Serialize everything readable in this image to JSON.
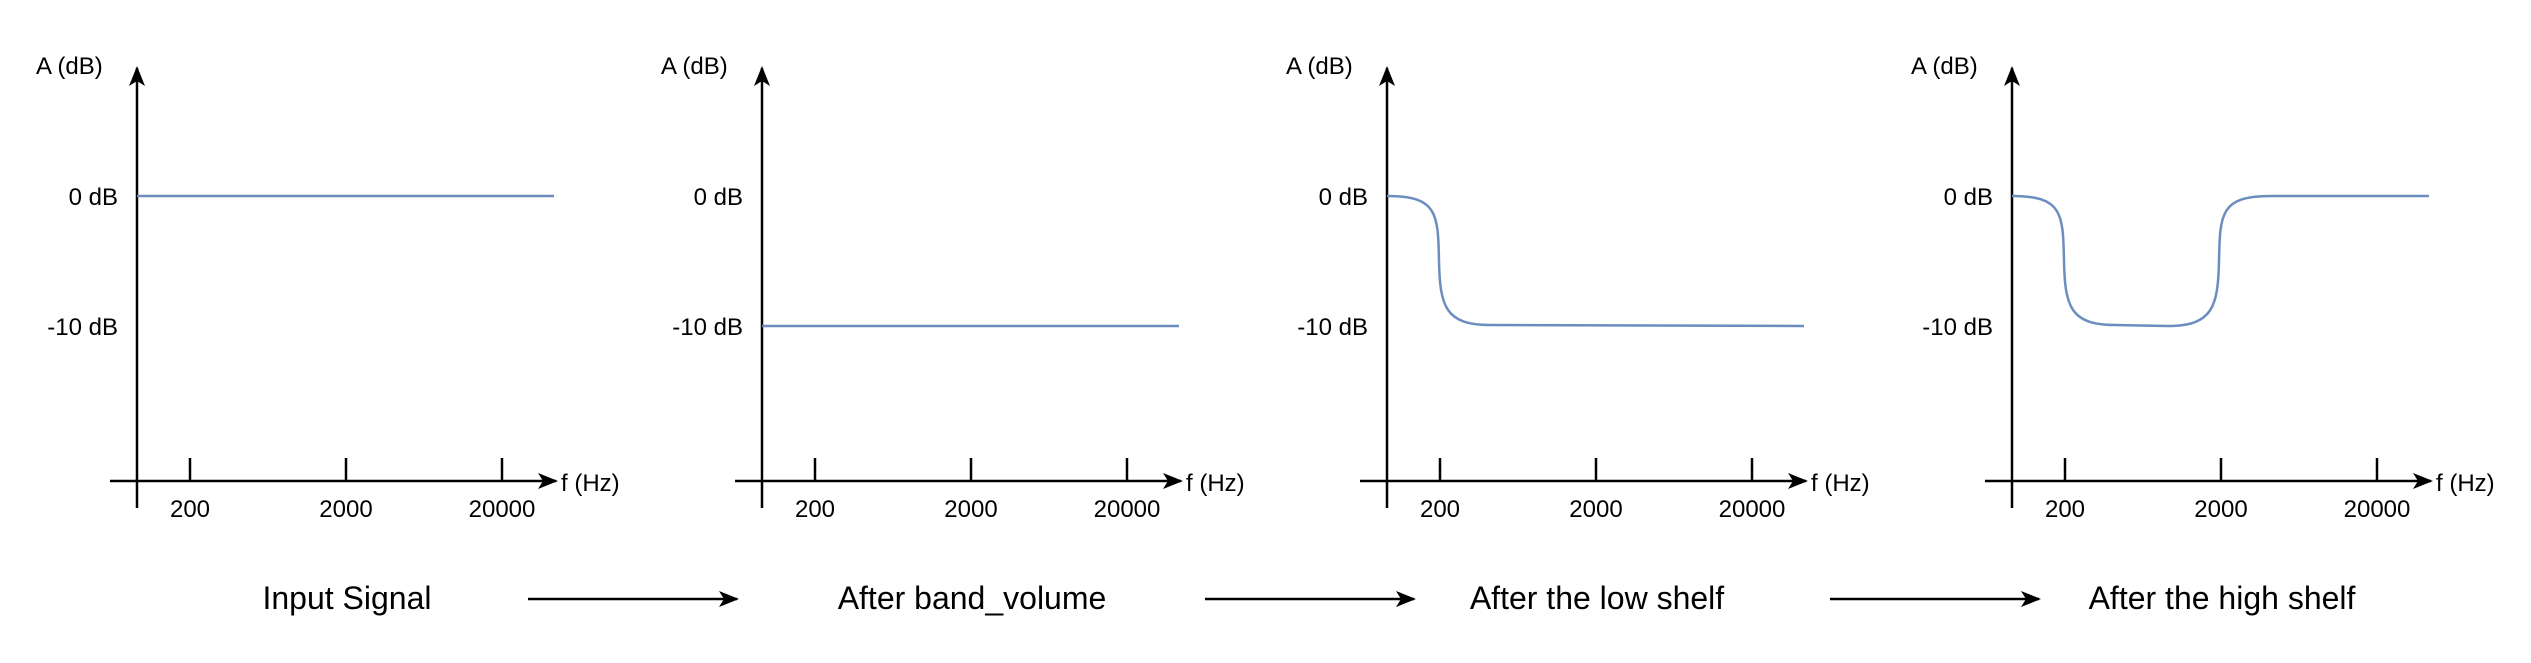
{
  "accent_color": "#6c8ebf",
  "panels": [
    {
      "y_axis_label": "A (dB)",
      "x_axis_label": "f (Hz)",
      "y_ticks": [
        "0 dB",
        "-10 dB"
      ],
      "x_ticks": [
        "200",
        "2000",
        "20000"
      ],
      "caption": "Input Signal",
      "response": "flat at 0 dB"
    },
    {
      "y_axis_label": "A (dB)",
      "x_axis_label": "f (Hz)",
      "y_ticks": [
        "0 dB",
        "-10 dB"
      ],
      "x_ticks": [
        "200",
        "2000",
        "20000"
      ],
      "caption": "After band_volume",
      "response": "flat at -10 dB"
    },
    {
      "y_axis_label": "A (dB)",
      "x_axis_label": "f (Hz)",
      "y_ticks": [
        "0 dB",
        "-10 dB"
      ],
      "x_ticks": [
        "200",
        "2000",
        "20000"
      ],
      "caption": "After the low shelf",
      "response": "0 dB below 200 Hz, -10 dB above"
    },
    {
      "y_axis_label": "A (dB)",
      "x_axis_label": "f (Hz)",
      "y_ticks": [
        "0 dB",
        "-10 dB"
      ],
      "x_ticks": [
        "200",
        "2000",
        "20000"
      ],
      "caption": "After the high shelf",
      "response": "0 dB below 200 Hz, -10 dB between 200 and 2000 Hz, 0 dB above 2000 Hz"
    }
  ]
}
